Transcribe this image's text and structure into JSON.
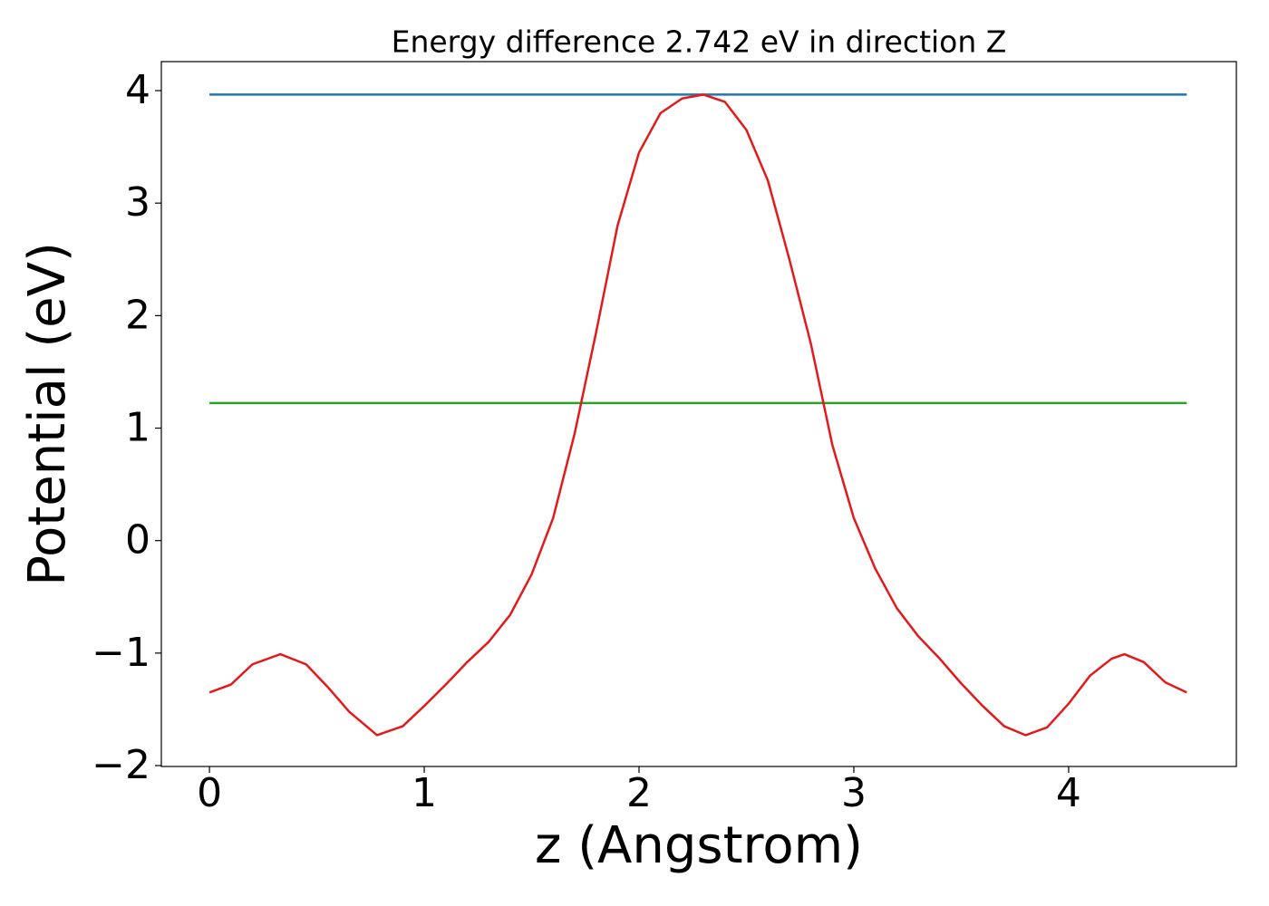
{
  "chart_data": {
    "type": "line",
    "title": "Energy difference 2.742 eV in direction Z",
    "xlabel": "z (Angstrom)",
    "ylabel": "Potential (eV)",
    "xlim": [
      -0.224,
      4.781
    ],
    "ylim": [
      -2.008,
      4.258
    ],
    "xticks": [
      0,
      1,
      2,
      3,
      4
    ],
    "yticks": [
      {
        "value": -2,
        "label": "−2"
      },
      {
        "value": -1,
        "label": "−1"
      },
      0,
      1,
      2,
      3,
      4
    ],
    "grid": false,
    "series": [
      {
        "color": "#1f77b4",
        "x": [
          0,
          4.55
        ],
        "values": [
          3.965,
          3.965
        ]
      },
      {
        "color": "#2ca02c",
        "x": [
          0,
          4.55
        ],
        "values": [
          1.223,
          1.223
        ]
      },
      {
        "color": "#e31a1c",
        "x": [
          0,
          0.1,
          0.2,
          0.33,
          0.45,
          0.55,
          0.65,
          0.78,
          0.9,
          1.0,
          1.1,
          1.2,
          1.3,
          1.4,
          1.5,
          1.6,
          1.7,
          1.8,
          1.9,
          2.0,
          2.1,
          2.2,
          2.3,
          2.4,
          2.5,
          2.6,
          2.7,
          2.8,
          2.9,
          3.0,
          3.1,
          3.2,
          3.3,
          3.4,
          3.5,
          3.6,
          3.7,
          3.8,
          3.9,
          4.0,
          4.1,
          4.2,
          4.26,
          4.35,
          4.45,
          4.55
        ],
        "values": [
          -1.35,
          -1.28,
          -1.1,
          -1.01,
          -1.1,
          -1.3,
          -1.52,
          -1.73,
          -1.65,
          -1.47,
          -1.28,
          -1.08,
          -0.9,
          -0.66,
          -0.3,
          0.2,
          0.95,
          1.85,
          2.8,
          3.45,
          3.8,
          3.93,
          3.965,
          3.9,
          3.65,
          3.2,
          2.5,
          1.75,
          0.85,
          0.2,
          -0.25,
          -0.6,
          -0.85,
          -1.05,
          -1.27,
          -1.47,
          -1.65,
          -1.73,
          -1.66,
          -1.45,
          -1.2,
          -1.05,
          -1.01,
          -1.08,
          -1.26,
          -1.35
        ]
      }
    ]
  }
}
